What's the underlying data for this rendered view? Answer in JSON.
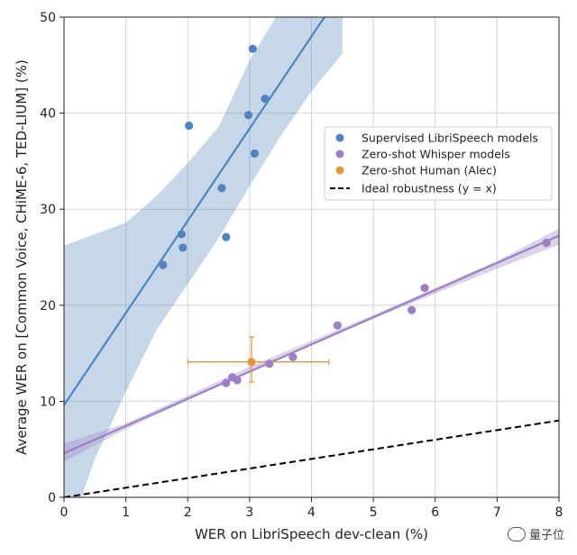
{
  "chart_data": {
    "type": "scatter",
    "xlabel": "WER on LibriSpeech dev-clean (%)",
    "ylabel": "Average WER on [Common Voice, CHiME-6, TED-LIUM] (%)",
    "xlim": [
      0,
      8
    ],
    "ylim": [
      0,
      50
    ],
    "xticks": [
      "0",
      "1",
      "2",
      "3",
      "4",
      "5",
      "6",
      "7",
      "8"
    ],
    "yticks": [
      "0",
      "10",
      "20",
      "30",
      "40",
      "50"
    ],
    "grid": true,
    "legend_position": "right",
    "series": [
      {
        "name": "Supervised LibriSpeech models",
        "color": "#4f84bf",
        "points": [
          [
            1.6,
            24.2
          ],
          [
            1.9,
            27.4
          ],
          [
            1.92,
            26.0
          ],
          [
            2.02,
            38.7
          ],
          [
            2.55,
            32.2
          ],
          [
            2.62,
            27.1
          ],
          [
            2.98,
            39.8
          ],
          [
            3.05,
            46.7
          ],
          [
            3.08,
            35.8
          ],
          [
            3.25,
            41.5
          ]
        ],
        "fit": {
          "intercept": 9.6,
          "slope": 9.6
        },
        "band": {
          "x": [
            0,
            0.5,
            1.0,
            1.5,
            2.0,
            2.5,
            3.0,
            3.5,
            4.0,
            4.5
          ],
          "upper": [
            26.2,
            27.4,
            28.6,
            31.4,
            34.8,
            38.6,
            45.5,
            50.8,
            55.0,
            60.0
          ],
          "lower": [
            -5.0,
            4.0,
            11.0,
            17.5,
            22.2,
            27.0,
            32.4,
            37.6,
            42.3,
            46.2
          ]
        }
      },
      {
        "name": "Zero-shot Whisper models",
        "color": "#9b80c6",
        "points": [
          [
            2.62,
            11.9
          ],
          [
            2.72,
            12.5
          ],
          [
            2.8,
            12.2
          ],
          [
            3.32,
            13.9
          ],
          [
            3.7,
            14.6
          ],
          [
            4.42,
            17.9
          ],
          [
            5.62,
            19.5
          ],
          [
            5.83,
            21.8
          ],
          [
            7.8,
            26.5
          ]
        ],
        "fit": {
          "intercept": 4.6,
          "slope": 2.83
        },
        "band": {
          "x": [
            0,
            1,
            2,
            3,
            4,
            5,
            6,
            7,
            8
          ],
          "upper": [
            5.6,
            7.7,
            10.6,
            13.6,
            16.3,
            19.0,
            21.8,
            24.6,
            28.0
          ],
          "lower": [
            3.7,
            7.1,
            10.1,
            13.1,
            15.9,
            18.6,
            21.2,
            23.8,
            26.3
          ]
        }
      },
      {
        "name": "Zero-shot Human (Alec)",
        "color": "#e8953a",
        "points": [
          [
            3.03,
            14.1
          ]
        ],
        "xerr": [
          2.0,
          4.28
        ],
        "yerr": [
          12.0,
          16.7
        ]
      }
    ],
    "reference_line": {
      "name": "Ideal robustness (y = x)",
      "style": "dashed",
      "color": "#000000"
    }
  },
  "watermark": {
    "text": "量子位"
  }
}
